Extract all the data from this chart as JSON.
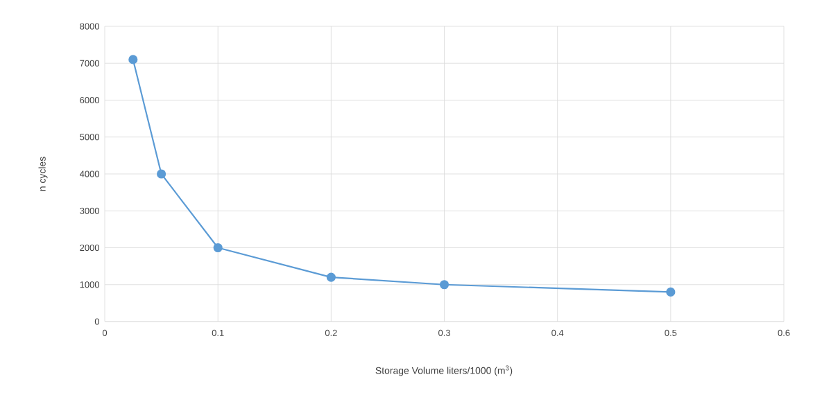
{
  "chart_data": {
    "type": "line",
    "xlabel": "Storage Volume liters/1000  (m$^{3}$)",
    "ylabel": "n cycles",
    "x": [
      0.025,
      0.05,
      0.1,
      0.2,
      0.3,
      0.5
    ],
    "series": [
      {
        "color": "#5b9bd5",
        "values": [
          7100,
          4000,
          2000,
          1200,
          1000,
          800
        ]
      }
    ],
    "xlim": [
      0,
      0.6
    ],
    "xticks": [
      0,
      0.1,
      0.2,
      0.3,
      0.4,
      0.5,
      0.6
    ],
    "ylim": [
      0,
      8000
    ],
    "yticks": [
      0,
      1000,
      2000,
      3000,
      4000,
      5000,
      6000,
      7000,
      8000
    ],
    "grid": true,
    "marker": "circle",
    "line_style": "solid"
  }
}
